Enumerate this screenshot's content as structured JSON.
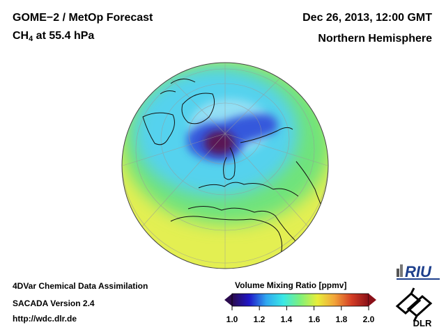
{
  "header": {
    "title_line1": "GOME−2 / MetOp Forecast",
    "species_main": "CH",
    "species_sub": "4",
    "species_rest": " at 55.4 hPa",
    "date": "Dec 26, 2013, 12:00 GMT",
    "region": "Northern Hemisphere"
  },
  "footer": {
    "method": "4DVar Chemical Data Assimilation",
    "version": "SACADA Version 2.4",
    "url": "http://wdc.dlr.de"
  },
  "colorbar": {
    "title": "Volume Mixing Ratio [ppmv]",
    "ticks": [
      "1.0",
      "1.2",
      "1.4",
      "1.6",
      "1.8",
      "2.0"
    ],
    "min": 1.0,
    "max": 2.0,
    "colors": [
      "#2a0a4e",
      "#1f16c8",
      "#2fa7f0",
      "#39e8e6",
      "#7ff07a",
      "#e8ee3a",
      "#f2a43a",
      "#d43d25",
      "#8a1018"
    ]
  },
  "logos": {
    "riu": "RIU",
    "dlr": "DLR"
  },
  "map": {
    "projection": "orthographic",
    "hemisphere": "northern",
    "colors": {
      "outer_band": "#e3ef52",
      "mid_band": "#6fe37a",
      "cyan_band": "#54d2ee",
      "vortex_blue": "#3658dc",
      "vortex_core": "#5a1454",
      "coastline": "#111111",
      "graticule": "#999999"
    }
  }
}
